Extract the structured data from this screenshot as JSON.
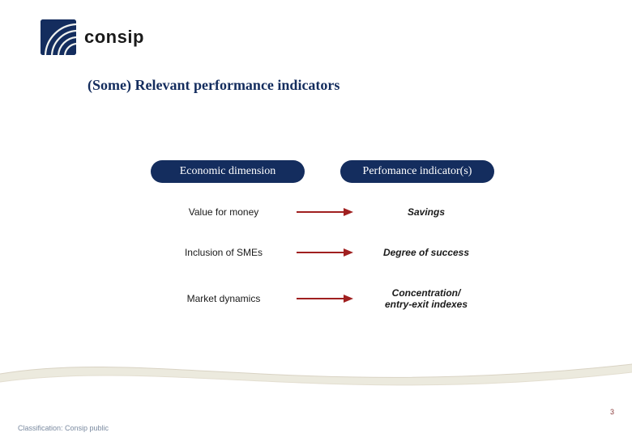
{
  "logo": {
    "text": "consip",
    "mark_bg": "#142d5e",
    "mark_fg": "#f0f2ef"
  },
  "title": {
    "text": "(Some) Relevant performance indicators",
    "color": "#142d5e",
    "fontsize": 18
  },
  "headers": {
    "left": "Economic dimension",
    "right": "Perfomance indicator(s)",
    "bg": "#142d5e",
    "fg": "#ffffff",
    "fontsize": 14
  },
  "rows": [
    {
      "left": "Value for money",
      "right": "Savings"
    },
    {
      "left": "Inclusion of SMEs",
      "right": "Degree of success"
    },
    {
      "left": "Market dynamics",
      "right": "Concentration/ entry-exit indexes"
    }
  ],
  "row_style": {
    "left_fontsize": 12,
    "left_color": "#1a1a1a",
    "right_fontsize": 12,
    "right_color": "#1a1a1a",
    "arrow_color": "#a02020",
    "arrow_len": 70,
    "arrow_stroke": 2
  },
  "wave": {
    "top_color": "#e8e3d7",
    "bottom_color": "#ffffff",
    "line_color": "#d6d0c2"
  },
  "footer": {
    "classification": "Classification: Consip public",
    "color": "#7a8aa0",
    "fontsize": 9
  },
  "pagenum": {
    "text": "3",
    "color": "#8a3a3a",
    "fontsize": 9
  }
}
